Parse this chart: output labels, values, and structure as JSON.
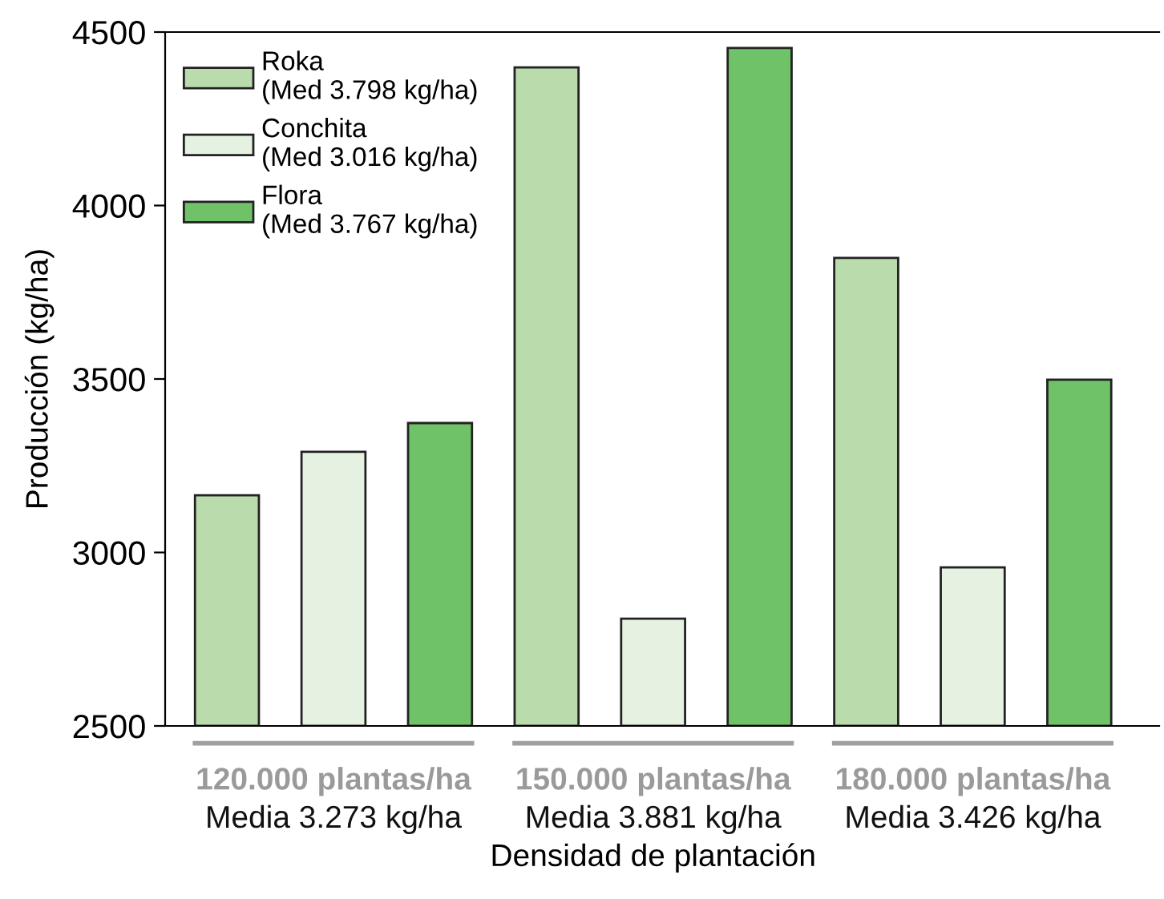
{
  "chart_data": {
    "type": "bar",
    "xlabel": "Densidad de plantación",
    "ylabel": "Producción (kg/ha)",
    "categories": [
      "120.000 plantas/ha\nMedia 3.273 kg/ha",
      "150.000 plantas/ha\nMedia 3.881 kg/ha",
      "180.000 plantas/ha\nMedia 3.426 kg/ha"
    ],
    "series": [
      {
        "name": "Roka\n(Med 3.798 kg/ha)",
        "color": "#badcac",
        "values": [
          3165,
          4398,
          3849
        ]
      },
      {
        "name": "Conchita\n(Med 3.016 kg/ha)",
        "color": "#e6f2e1",
        "values": [
          3290,
          2809,
          2957
        ]
      },
      {
        "name": "Flora\n(Med 3.767 kg/ha)",
        "color": "#70c268",
        "values": [
          3373,
          4454,
          3498
        ]
      }
    ],
    "ylim": [
      2500,
      4500
    ],
    "yticks": [
      2500,
      3000,
      3500,
      4000,
      4500
    ],
    "grid": false,
    "legend": "top left"
  }
}
